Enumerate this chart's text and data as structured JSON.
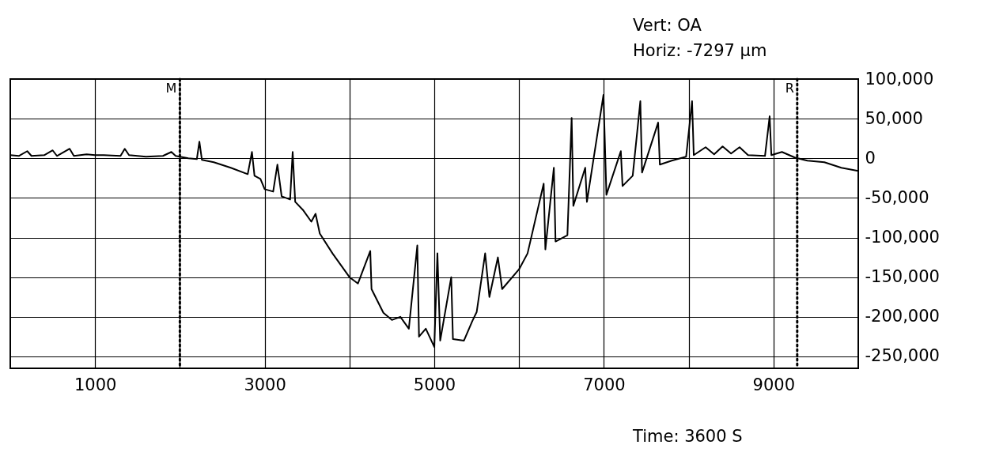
{
  "chart_data": {
    "type": "line",
    "annotations": [
      "Vert: OA",
      "Horiz: -7297 μm",
      "Time: 3600 S"
    ],
    "xlim": [
      0,
      10000
    ],
    "ylim": [
      -265000,
      100000
    ],
    "xticks": [
      1000,
      {
        "value": 2000,
        "label": null
      },
      3000,
      {
        "value": 4000,
        "label": null
      },
      5000,
      {
        "value": 6000,
        "label": null
      },
      7000,
      {
        "value": 8000,
        "label": null
      },
      9000
    ],
    "yticks": [
      {
        "value": -250000,
        "label": "-250,000"
      },
      {
        "value": -200000,
        "label": "-200,000"
      },
      {
        "value": -150000,
        "label": "-150,000"
      },
      {
        "value": -100000,
        "label": "-100,000"
      },
      {
        "value": -50000,
        "label": "-50,000"
      },
      0,
      {
        "value": 50000,
        "label": "50,000"
      },
      {
        "value": 100000,
        "label": "100,000"
      }
    ],
    "grid": true,
    "ref_lines": [
      {
        "axis": "x",
        "value": 2000,
        "label": "M",
        "line_style": "dotted"
      },
      {
        "axis": "x",
        "value": 9280,
        "label": "R",
        "line_style": "dotted"
      }
    ],
    "series": [
      {
        "color": "#000000",
        "x": [
          0,
          100,
          200,
          250,
          400,
          500,
          550,
          700,
          750,
          900,
          1000,
          1100,
          1300,
          1350,
          1400,
          1600,
          1800,
          1900,
          1950,
          2000,
          2100,
          2200,
          2230,
          2260,
          2400,
          2600,
          2800,
          2850,
          2880,
          2950,
          3000,
          3100,
          3150,
          3200,
          3300,
          3330,
          3360,
          3450,
          3550,
          3600,
          3650,
          3800,
          3900,
          4000,
          4100,
          4245,
          4260,
          4400,
          4500,
          4600,
          4700,
          4800,
          4820,
          4900,
          5000,
          5037,
          5070,
          5200,
          5220,
          5350,
          5450,
          5500,
          5600,
          5650,
          5750,
          5800,
          6000,
          6100,
          6290,
          6310,
          6410,
          6430,
          6570,
          6620,
          6640,
          6780,
          6800,
          6995,
          7030,
          7200,
          7220,
          7340,
          7430,
          7450,
          7640,
          7660,
          7800,
          7970,
          8040,
          8060,
          8200,
          8300,
          8400,
          8500,
          8600,
          8700,
          8900,
          8955,
          8975,
          9100,
          9250,
          9400,
          9600,
          9800,
          10000
        ],
        "values": [
          4000,
          3000,
          9000,
          3000,
          4000,
          10000,
          3000,
          12000,
          3000,
          5000,
          4000,
          4000,
          3000,
          12000,
          4000,
          2000,
          3000,
          8000,
          3000,
          2000,
          0,
          -1000,
          21000,
          -2000,
          -5000,
          -12000,
          -20000,
          8000,
          -22000,
          -26000,
          -39000,
          -42000,
          -8000,
          -48000,
          -52000,
          8000,
          -55000,
          -65000,
          -80000,
          -70000,
          -95000,
          -120000,
          -135000,
          -150000,
          -158000,
          -117000,
          -165000,
          -195000,
          -204000,
          -200000,
          -215000,
          -110000,
          -225000,
          -215000,
          -238000,
          -120000,
          -230000,
          -150000,
          -228000,
          -230000,
          -205000,
          -194000,
          -120000,
          -175000,
          -125000,
          -165000,
          -140000,
          -120000,
          -32000,
          -115000,
          -12000,
          -105000,
          -97000,
          51000,
          -60000,
          -12000,
          -55000,
          80000,
          -46000,
          9000,
          -35000,
          -22000,
          72000,
          -18000,
          45000,
          -8000,
          -3000,
          2000,
          72000,
          4000,
          14000,
          5000,
          15000,
          6000,
          14000,
          4000,
          3000,
          53000,
          4000,
          8000,
          1000,
          -3000,
          -5000,
          -12000,
          -16000
        ]
      }
    ]
  }
}
